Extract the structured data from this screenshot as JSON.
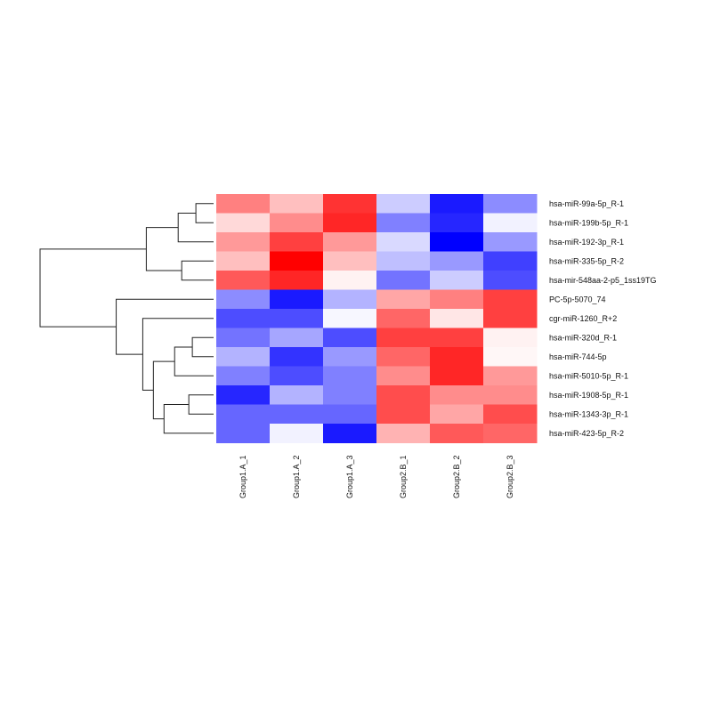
{
  "chart_data": {
    "type": "heatmap",
    "title": "",
    "color_scale": {
      "low": "#0000ff",
      "mid": "#ffffff",
      "high": "#ff0000"
    },
    "columns": [
      "Group1.A_1",
      "Group1.A_2",
      "Group1.A_3",
      "Group2.B_1",
      "Group2.B_2",
      "Group2.B_3"
    ],
    "rows": [
      "hsa-miR-99a-5p_R-1",
      "hsa-miR-199b-5p_R-1",
      "hsa-miR-192-3p_R-1",
      "hsa-miR-335-5p_R-2",
      "hsa-mir-548aa-2-p5_1ss19TG",
      "PC-5p-5070_74",
      "cgr-miR-1260_R+2",
      "hsa-miR-320d_R-1",
      "hsa-miR-744-5p",
      "hsa-miR-5010-5p_R-1",
      "hsa-miR-1908-5p_R-1",
      "hsa-miR-1343-3p_R-1",
      "hsa-miR-423-5p_R-2"
    ],
    "values": [
      [
        0.5,
        0.25,
        0.8,
        -0.2,
        -0.9,
        -0.45
      ],
      [
        0.15,
        0.45,
        0.85,
        -0.5,
        -0.85,
        -0.05
      ],
      [
        0.4,
        0.75,
        0.4,
        -0.15,
        -1.0,
        -0.4
      ],
      [
        0.25,
        1.0,
        0.25,
        -0.25,
        -0.4,
        -0.75
      ],
      [
        0.65,
        0.85,
        0.05,
        -0.55,
        -0.2,
        -0.7
      ],
      [
        -0.45,
        -0.9,
        -0.3,
        0.35,
        0.5,
        0.75
      ],
      [
        -0.7,
        -0.7,
        -0.03,
        0.6,
        0.1,
        0.75
      ],
      [
        -0.55,
        -0.35,
        -0.7,
        0.75,
        0.75,
        0.05
      ],
      [
        -0.3,
        -0.8,
        -0.4,
        0.6,
        0.85,
        0.03
      ],
      [
        -0.5,
        -0.7,
        -0.5,
        0.45,
        0.85,
        0.4
      ],
      [
        -0.85,
        -0.3,
        -0.5,
        0.7,
        0.45,
        0.45
      ],
      [
        -0.6,
        -0.6,
        -0.6,
        0.7,
        0.35,
        0.7
      ],
      [
        -0.6,
        -0.05,
        -0.9,
        0.3,
        0.65,
        0.6
      ]
    ],
    "row_dendrogram": [
      [
        0,
        1
      ],
      [
        13,
        2
      ],
      [
        3,
        4
      ],
      [
        14,
        15
      ],
      [
        7,
        8
      ],
      [
        17,
        9
      ],
      [
        10,
        11
      ],
      [
        19,
        12
      ],
      [
        18,
        20
      ],
      [
        6,
        21
      ],
      [
        5,
        22
      ],
      [
        16,
        23
      ]
    ],
    "row_dendrogram_heights": [
      0.1,
      0.2,
      0.18,
      0.38,
      0.12,
      0.22,
      0.14,
      0.28,
      0.34,
      0.4,
      0.55,
      0.98
    ]
  }
}
